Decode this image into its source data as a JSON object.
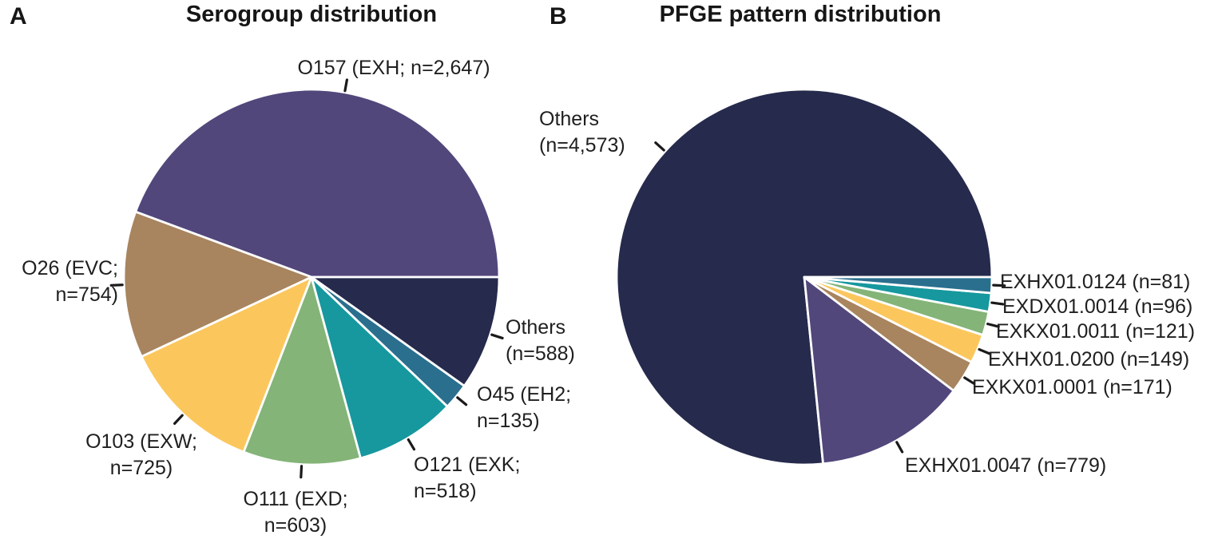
{
  "figure": {
    "background": "#ffffff",
    "text_color": "#1a1a1a",
    "tick_color": "#1a1a1a",
    "slice_border_color": "#ffffff"
  },
  "panels": [
    {
      "letter": "A",
      "title": "Serogroup distribution"
    },
    {
      "letter": "B",
      "title": "PFGE pattern distribution"
    }
  ],
  "chart_data": [
    {
      "type": "pie",
      "title": "Serogroup distribution",
      "start_angle_deg": 0,
      "direction": "counterclockwise",
      "legend_position": "outside-labels",
      "slices": [
        {
          "label": "O157 (EXH; n=2,647)",
          "label_display": "O157 (EXH; n=2,647)",
          "value": 2647,
          "color": "#52477B"
        },
        {
          "label": "O26 (EVC; n=754)",
          "label_display": "O26 (EVC;\nn=754)",
          "value": 754,
          "color": "#A8855F"
        },
        {
          "label": "O103 (EXW; n=725)",
          "label_display": "O103 (EXW;\nn=725)",
          "value": 725,
          "color": "#FBC75D"
        },
        {
          "label": "O111 (EXD; n=603)",
          "label_display": "O111 (EXD;\nn=603)",
          "value": 603,
          "color": "#84B478"
        },
        {
          "label": "O121 (EXK; n=518)",
          "label_display": "O121 (EXK;\nn=518)",
          "value": 518,
          "color": "#16989E"
        },
        {
          "label": "O45 (EH2; n=135)",
          "label_display": "O45 (EH2;\nn=135)",
          "value": 135,
          "color": "#2A6F8E"
        },
        {
          "label": "Others (n=588)",
          "label_display": "Others\n(n=588)",
          "value": 588,
          "color": "#262A4C"
        }
      ]
    },
    {
      "type": "pie",
      "title": "PFGE pattern distribution",
      "start_angle_deg": 0,
      "direction": "counterclockwise",
      "legend_position": "outside-labels",
      "slices": [
        {
          "label": "Others (n=4,573)",
          "label_display": "Others\n(n=4,573)",
          "value": 4573,
          "color": "#262A4C"
        },
        {
          "label": "EXHX01.0047 (n=779)",
          "label_display": "EXHX01.0047 (n=779)",
          "value": 779,
          "color": "#52477B"
        },
        {
          "label": "EXKX01.0001 (n=171)",
          "label_display": "EXKX01.0001 (n=171)",
          "value": 171,
          "color": "#A8855F"
        },
        {
          "label": "EXHX01.0200 (n=149)",
          "label_display": "EXHX01.0200 (n=149)",
          "value": 149,
          "color": "#FBC75D"
        },
        {
          "label": "EXKX01.0011 (n=121)",
          "label_display": "EXKX01.0011 (n=121)",
          "value": 121,
          "color": "#84B478"
        },
        {
          "label": "EXDX01.0014 (n=96)",
          "label_display": "EXDX01.0014 (n=96)",
          "value": 96,
          "color": "#16989E"
        },
        {
          "label": "EXHX01.0124 (n=81)",
          "label_display": "EXHX01.0124 (n=81)",
          "value": 81,
          "color": "#2A6F8E"
        }
      ]
    }
  ]
}
